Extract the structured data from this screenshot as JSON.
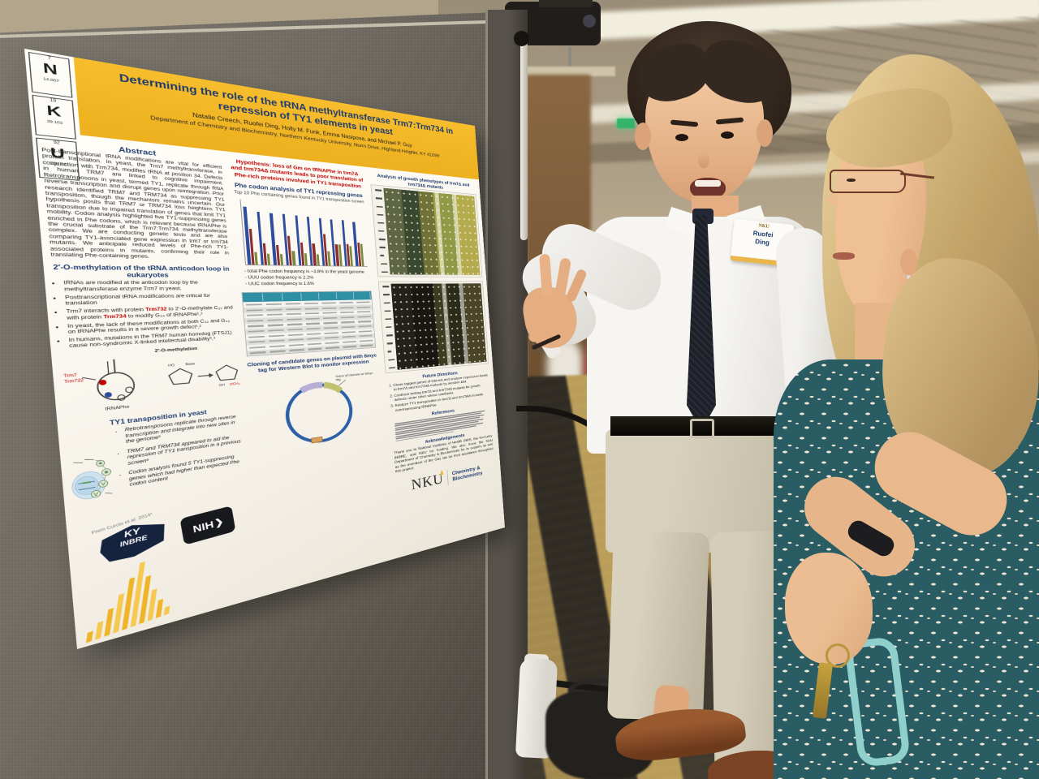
{
  "colors": {
    "poster_gold": "#edb01f",
    "heading_navy": "#1d3a6e",
    "hypothesis_red": "#c00000",
    "table_header_teal": "#2f8fa3",
    "nku_gold": "#f0b429"
  },
  "icons": {
    "nih_swoosh": "❯"
  },
  "poster": {
    "element_card": {
      "tiles": [
        {
          "number": "7",
          "symbol": "N",
          "mass": "14.007"
        },
        {
          "number": "19",
          "symbol": "K",
          "mass": "39.102"
        },
        {
          "number": "92",
          "symbol": "U",
          "mass": "238.03"
        }
      ]
    },
    "header": {
      "title": "Determining the role of the tRNA methyltransferase Trm7:Trm734 in repression of TY1 elements in yeast",
      "authors": "Natalie Creech, Ruofei Ding, Holly M. Funk, Emma Nasipova, and Michael P. Guy",
      "affiliation": "Department of Chemistry and Biochemistry, Northern Kentucky University, Nunn Drive, Highland Heights, KY 41099"
    },
    "abstract": {
      "heading": "Abstract",
      "text": "Post-transcriptional tRNA modifications are vital for efficient protein translation. In yeast, the Trm7 methyltransferase, in conjunction with Trm734, modifies tRNA at position 34. Defects in human TRM7 are linked to cognitive impairment. Retrotransposons in yeast, termed TY1, replicate through RNA reverse transcription and disrupt genes upon reintegration. Prior research identified TRM7 and TRM734 as suppressing TY1 transposition, though the mechanism remains uncertain. Our hypothesis posits that TRM7 or TRM734 loss heightens TY1 transposition due to impaired translation of genes that limit TY1 mobility. Codon analysis highlighted five TY1-suppressing genes enriched in Phe codons, which is relevant because tRNAPhe is the crucial substrate of the Trm7:Trm734 methyltransferase complex. We are conducting genetic tests and are also comparing TY1-associated gene expression in trm7 or trm734 mutants. We anticipate reduced levels of Phe-rich TY1-associated proteins in mutants, confirming their role in translating Phe-containing genes."
    },
    "methylation": {
      "heading": "2′-O-methylation of the tRNA anticodon loop in eukaryotes",
      "bullet1": "tRNAs are modified at the anticodon loop by the methyltransferase enzyme Trm7 in yeast.",
      "bullet2": "Posttranscriptional tRNA modifications are critical for translation",
      "bullet3_pre": "Trm7 interacts with protein ",
      "bullet3_red1": "Trm732",
      "bullet3_mid": " to 2′-O-methylate C₃₂ and with protein ",
      "bullet3_red2": "Trm734",
      "bullet3_post": " to modify G₃₄ of tRNAPhe¹,²",
      "bullet4": "In yeast, the lack of these modifications at both C₃₂ and G₃₄ on tRNAPhe results in a severe growth defect¹,²",
      "bullet5": "In humans, mutations in the TRM7 human homolog (FTSJ1) cause non-syndromic X-linked intellectual disability³,⁴",
      "diagram_label": "2′-O-methylation",
      "enzyme_label": "Trm7 Trm732",
      "trna_label": "tRNAPhe"
    },
    "ty1": {
      "heading": "TY1 transposition in yeast",
      "bullet1": "Retrotransposons replicate through reverse transcription and integrate into new sites in the genome⁵",
      "bullet2": "TRM7 and TRM734 appeared to aid the repression of TY1 transposition in a previous screen⁶",
      "bullet3": "Codon analysis found 5 TY1-suppressing genes which had higher than expected Phe codon content",
      "caption": "From Curcio et al. 2014⁵"
    },
    "logos": {
      "ky_line1": "KY",
      "ky_line2": "INBRE",
      "nih": "NIH"
    },
    "hypothesis": "Hypothesis: loss of Gm on tRNAPhe in trm7Δ and trm734Δ mutants leads to poor translation of Phe-rich proteins involved in TY1 transposition",
    "phe_analysis": {
      "heading": "Phe codon analysis of TY1 repressing genes",
      "subtitle": "Top 10 Phe containing genes found in TY1 transposition screen",
      "note1": "- total Phe codon frequency is ~3.8% in the yeast genome",
      "note2": "- UUU codon frequency is 2.2%",
      "note3": "- UUC codon frequency is 1.6%"
    },
    "cloning": {
      "heading": "Cloning of candidate genes on plasmid with 8myc tag for Western Blot to monitor expression",
      "annotation": "Gene of interest w/ 8myc tag"
    },
    "growth": {
      "heading": "Analysis of growth phenotypes of trm7Δ and trm734Δ mutants"
    },
    "future": {
      "heading": "Future Directions",
      "item1": "Clone tagged genes of interest and analyze expression levels in trm7Δ and trm734Δ mutants by western blot",
      "item2": "Continue testing trm7Δ and trm734Δ mutants for growth defects under other stress conditions",
      "item3": "Analyze TY1 transposition in trm7Δ and trm734Δ mutants overexpressing tRNAPhe"
    },
    "references": {
      "heading": "References"
    },
    "acknowledgements": {
      "heading": "Acknowledgements",
      "text": "Thank you to National Institutes of Health (NIH), the Kentucky INBRE, and NKU for funding. We also thank the NKU Department of Chemistry & Biochemistry for its support, as well as the members of the Guy lab for their assistance throughout this project."
    },
    "nku_footer": {
      "wordmark": "NKU",
      "dept1": "Chemistry &",
      "dept2": "Biochemistry"
    }
  },
  "badge": {
    "brand": "NKU",
    "line1": "Ruofei",
    "line2": "Ding"
  },
  "chart_data": {
    "type": "bar",
    "title": "Phe codon analysis of TY1 repressing genes",
    "subtitle": "Top 10 Phe containing genes found in TY1 transposition screen",
    "categories": [
      "",
      "",
      "",
      "",
      "",
      "",
      "",
      "",
      "",
      ""
    ],
    "series": [
      {
        "name": "blue",
        "color": "#2e4d9e",
        "values": [
          100,
          93,
          92,
          91,
          90,
          89,
          88,
          87,
          86,
          84
        ]
      },
      {
        "name": "red",
        "color": "#8c2e2e",
        "values": [
          62,
          38,
          35,
          52,
          42,
          40,
          58,
          40,
          42,
          45
        ]
      },
      {
        "name": "green",
        "color": "#7a8a3a",
        "values": [
          22,
          20,
          20,
          25,
          22,
          21,
          27,
          40,
          38,
          43
        ]
      }
    ],
    "xlabel": "",
    "ylabel": "",
    "legend": false
  }
}
